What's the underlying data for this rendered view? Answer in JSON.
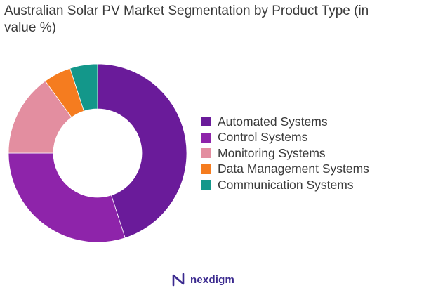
{
  "chart_data": {
    "type": "pie",
    "variant": "donut",
    "title": "Australian Solar PV Market Segmentation by Product Type (in value %)",
    "categories": [
      "Automated Systems",
      "Control Systems",
      "Monitoring Systems",
      "Data Management Systems",
      "Communication Systems"
    ],
    "values": [
      45,
      30,
      15,
      5,
      5
    ],
    "colors": [
      "#6a1b9a",
      "#8e24aa",
      "#e38ea0",
      "#f57c1f",
      "#13978a"
    ],
    "legend_position": "right",
    "start_angle_deg": 0,
    "direction": "clockwise"
  },
  "brand": {
    "name": "nexdigm",
    "icon": "nexdigm-logo-icon",
    "color": "#3b2a8f"
  }
}
